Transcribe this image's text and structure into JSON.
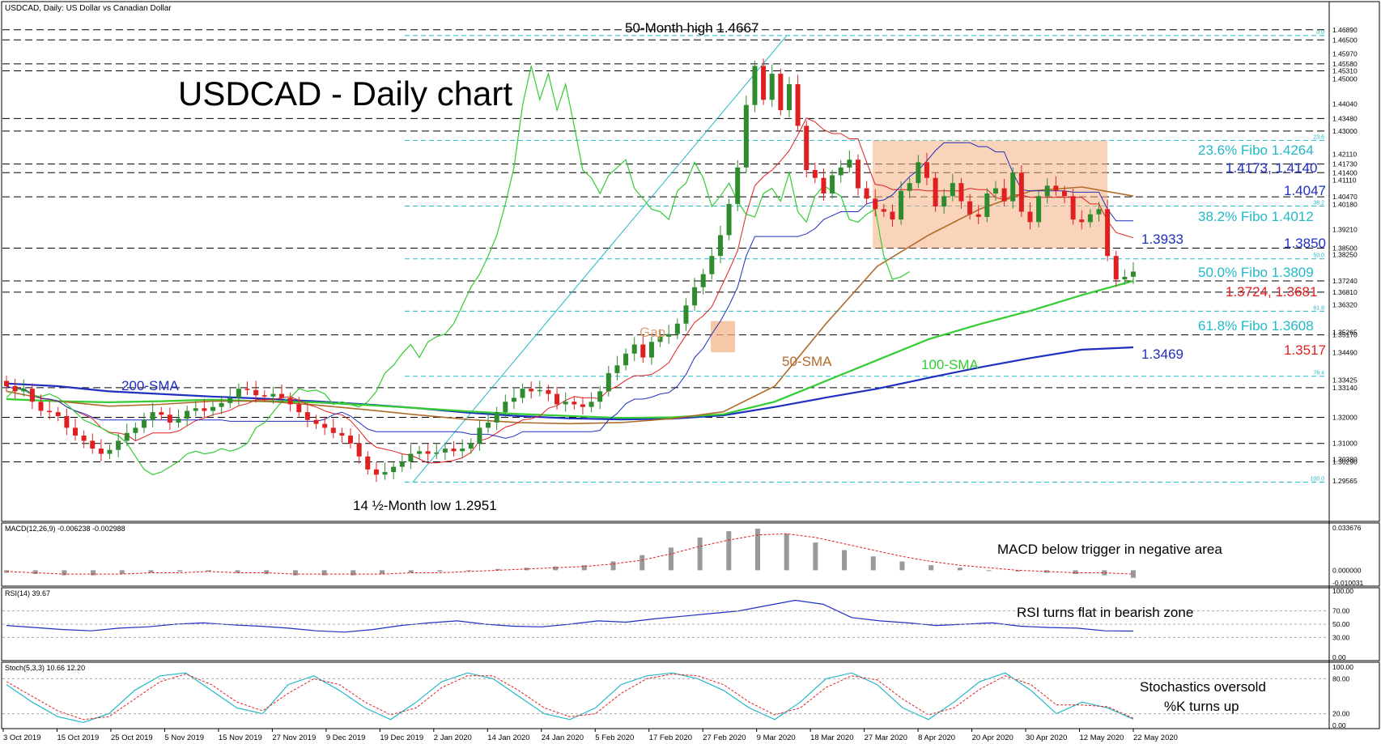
{
  "header": {
    "symbol_line": "USDCAD, Daily:  US Dollar vs Canadian Dollar"
  },
  "chart_title": "USDCAD - Daily chart",
  "colors": {
    "up": "#2e8b2e",
    "down": "#e02020",
    "sma200": "#1f2fbf",
    "sma100": "#33cc33",
    "sma50": "#b06a2a",
    "tenkan": "#e02020",
    "kijun": "#1f2fbf",
    "chikou": "#33cc33",
    "cloud": "#f4b183",
    "fibo": "#22b8c8",
    "rsi": "#1f2fbf",
    "stoch_k": "#22b8c8",
    "stoch_d": "#e02020"
  },
  "chart_data": [
    {
      "type": "candlestick",
      "title": "USDCAD - Daily chart",
      "x_tick_labels": [
        "3 Oct 2019",
        "15 Oct 2019",
        "25 Oct 2019",
        "5 Nov 2019",
        "15 Nov 2019",
        "27 Nov 2019",
        "9 Dec 2019",
        "19 Dec 2019",
        "2 Jan 2020",
        "14 Jan 2020",
        "24 Jan 2020",
        "5 Feb 2020",
        "17 Feb 2020",
        "27 Feb 2020",
        "9 Mar 2020",
        "18 Mar 2020",
        "27 Mar 2020",
        "8 Apr 2020",
        "20 Apr 2020",
        "30 Apr 2020",
        "12 May 2020",
        "22 May 2020"
      ],
      "ylim": [
        1.29,
        1.471
      ],
      "y_tick_labels": [
        "1.46890",
        "1.46500",
        "1.45970",
        "1.45580",
        "1.45310",
        "1.45000",
        "1.44040",
        "1.43480",
        "1.43000",
        "1.42110",
        "1.41730",
        "1.41400",
        "1.41110",
        "1.40470",
        "1.40180",
        "1.39210",
        "1.38500",
        "1.38250",
        "1.37240",
        "1.36810",
        "1.36320",
        "1.35265",
        "1.35170",
        "1.34490",
        "1.33425",
        "1.33140",
        "1.32000",
        "1.31000",
        "1.30380",
        "1.30290",
        "1.29565"
      ],
      "y_tick_values": [
        1.4689,
        1.465,
        1.4597,
        1.4558,
        1.4531,
        1.45,
        1.4404,
        1.4348,
        1.43,
        1.4211,
        1.4173,
        1.414,
        1.4111,
        1.4047,
        1.4018,
        1.3921,
        1.385,
        1.3825,
        1.3724,
        1.3681,
        1.3632,
        1.35265,
        1.3517,
        1.3449,
        1.33425,
        1.3314,
        1.32,
        1.31,
        1.3038,
        1.3029,
        1.29565
      ],
      "horizontal_levels": [
        1.4689,
        1.465,
        1.4558,
        1.4531,
        1.4348,
        1.43,
        1.4173,
        1.414,
        1.4047,
        1.385,
        1.3724,
        1.3681,
        1.3517,
        1.3314,
        1.32,
        1.31,
        1.3029
      ],
      "fibo_levels": [
        {
          "pct": "0.0",
          "value": 1.4667
        },
        {
          "pct": "23.6",
          "value": 1.4264
        },
        {
          "pct": "38.2",
          "value": 1.4012
        },
        {
          "pct": "50.0",
          "value": 1.3809
        },
        {
          "pct": "61.8",
          "value": 1.3608
        },
        {
          "pct": "76.4",
          "value": 1.3358
        },
        {
          "pct": "100.0",
          "value": 1.2951
        }
      ],
      "series": [
        {
          "name": "200-SMA",
          "values": [
            1.333,
            1.332,
            1.33,
            1.329,
            1.328,
            1.3272,
            1.3262,
            1.325,
            1.3236,
            1.3218,
            1.3205,
            1.3196,
            1.3192,
            1.3195,
            1.3208,
            1.324,
            1.3276,
            1.331,
            1.3352,
            1.3392,
            1.3428,
            1.346,
            1.3469
          ]
        },
        {
          "name": "100-SMA",
          "values": [
            1.327,
            1.3262,
            1.3258,
            1.3262,
            1.3268,
            1.3262,
            1.3258,
            1.3248,
            1.3236,
            1.3223,
            1.3213,
            1.3205,
            1.3198,
            1.32,
            1.3212,
            1.326,
            1.334,
            1.342,
            1.35,
            1.3558,
            1.361,
            1.367,
            1.3724
          ]
        },
        {
          "name": "50-SMA",
          "values": [
            1.33,
            1.3262,
            1.3243,
            1.325,
            1.3262,
            1.3263,
            1.3248,
            1.323,
            1.321,
            1.3192,
            1.318,
            1.3176,
            1.318,
            1.3195,
            1.3222,
            1.332,
            1.356,
            1.378,
            1.39,
            1.4,
            1.407,
            1.4085,
            1.405
          ]
        }
      ],
      "ohlc_close": [
        1.332,
        1.33,
        1.331,
        1.326,
        1.3225,
        1.322,
        1.3205,
        1.316,
        1.313,
        1.311,
        1.308,
        1.306,
        1.3075,
        1.311,
        1.314,
        1.316,
        1.319,
        1.322,
        1.321,
        1.318,
        1.3195,
        1.3225,
        1.3235,
        1.3225,
        1.324,
        1.3255,
        1.3275,
        1.331,
        1.3305,
        1.3285,
        1.328,
        1.329,
        1.3275,
        1.325,
        1.322,
        1.319,
        1.3175,
        1.316,
        1.314,
        1.313,
        1.31,
        1.305,
        1.3,
        1.298,
        1.299,
        1.301,
        1.303,
        1.306,
        1.307,
        1.306,
        1.3065,
        1.308,
        1.307,
        1.308,
        1.31,
        1.316,
        1.318,
        1.322,
        1.326,
        1.3275,
        1.331,
        1.33,
        1.3305,
        1.329,
        1.325,
        1.326,
        1.325,
        1.324,
        1.326,
        1.33,
        1.337,
        1.34,
        1.3445,
        1.348,
        1.343,
        1.349,
        1.351,
        1.352,
        1.356,
        1.363,
        1.37,
        1.375,
        1.382,
        1.39,
        1.402,
        1.416,
        1.44,
        1.455,
        1.442,
        1.452,
        1.438,
        1.448,
        1.432,
        1.415,
        1.412,
        1.406,
        1.413,
        1.416,
        1.419,
        1.408,
        1.404,
        1.4,
        1.399,
        1.396,
        1.407,
        1.41,
        1.418,
        1.412,
        1.401,
        1.405,
        1.41,
        1.403,
        1.398,
        1.397,
        1.406,
        1.408,
        1.403,
        1.414,
        1.399,
        1.395,
        1.405,
        1.409,
        1.407,
        1.405,
        1.396,
        1.395,
        1.398,
        1.4,
        1.382,
        1.373,
        1.374,
        1.376
      ]
    },
    {
      "type": "bar",
      "title": "MACD(12,26,9) -0.006238 -0.002988",
      "y_tick_labels": [
        "0.033676",
        "0.000000",
        "-0.010031"
      ],
      "ylim": [
        -0.010031,
        0.033676
      ],
      "series": [
        {
          "name": "MACD",
          "values": [
            -0.002,
            -0.003,
            -0.004,
            -0.004,
            -0.003,
            -0.002,
            -0.001,
            -0.001,
            -0.002,
            -0.003,
            -0.004,
            -0.004,
            -0.004,
            -0.003,
            -0.002,
            -0.001,
            0.0,
            0.001,
            0.002,
            0.003,
            0.004,
            0.007,
            0.012,
            0.018,
            0.026,
            0.031,
            0.033,
            0.029,
            0.022,
            0.016,
            0.011,
            0.007,
            0.004,
            0.002,
            0.0,
            -0.001,
            -0.002,
            -0.003,
            -0.004,
            -0.006
          ]
        },
        {
          "name": "Signal",
          "values": [
            -0.001,
            -0.002,
            -0.003,
            -0.003,
            -0.003,
            -0.002,
            -0.002,
            -0.001,
            -0.002,
            -0.002,
            -0.003,
            -0.003,
            -0.003,
            -0.003,
            -0.002,
            -0.002,
            -0.001,
            0.0,
            0.001,
            0.002,
            0.003,
            0.005,
            0.008,
            0.013,
            0.019,
            0.024,
            0.028,
            0.029,
            0.026,
            0.021,
            0.016,
            0.011,
            0.007,
            0.004,
            0.002,
            0.0,
            -0.001,
            -0.002,
            -0.002,
            -0.003
          ]
        }
      ]
    },
    {
      "type": "line",
      "title": "RSI(14) 39.67",
      "y_tick_labels": [
        "100.00",
        "70.00",
        "50.00",
        "30.00",
        "0.00"
      ],
      "ylim": [
        0,
        100
      ],
      "series": [
        {
          "name": "RSI",
          "values": [
            48,
            45,
            42,
            40,
            44,
            46,
            50,
            52,
            49,
            47,
            44,
            40,
            38,
            42,
            48,
            52,
            55,
            50,
            47,
            46,
            50,
            55,
            53,
            58,
            62,
            66,
            70,
            78,
            86,
            80,
            60,
            55,
            52,
            48,
            50,
            52,
            47,
            45,
            44,
            40,
            39.67
          ]
        }
      ]
    },
    {
      "type": "line",
      "title": "Stoch(5,3,3) 10.66 12.20",
      "y_tick_labels": [
        "100.00",
        "80.00",
        "20.00",
        "0.00"
      ],
      "ylim": [
        0,
        100
      ],
      "series": [
        {
          "name": "%K",
          "values": [
            70,
            40,
            15,
            5,
            20,
            60,
            85,
            90,
            60,
            30,
            20,
            70,
            85,
            60,
            30,
            10,
            40,
            75,
            90,
            80,
            50,
            20,
            10,
            30,
            70,
            85,
            90,
            80,
            60,
            30,
            10,
            40,
            80,
            90,
            70,
            30,
            10,
            40,
            75,
            90,
            60,
            20,
            40,
            30,
            10.66
          ]
        },
        {
          "name": "%D",
          "values": [
            75,
            50,
            25,
            10,
            15,
            45,
            75,
            88,
            70,
            40,
            25,
            55,
            80,
            70,
            40,
            18,
            30,
            65,
            85,
            85,
            60,
            30,
            15,
            20,
            55,
            80,
            88,
            85,
            70,
            40,
            18,
            30,
            65,
            85,
            78,
            45,
            18,
            30,
            62,
            85,
            70,
            35,
            35,
            32,
            12.2
          ]
        }
      ]
    }
  ],
  "annotations": {
    "high": "50-Month high 1.4667",
    "low": "14 ½-Month low 1.2951",
    "gap": "Gap",
    "sma200": "200-SMA",
    "sma50": "50-SMA",
    "sma100": "100-SMA",
    "fibo236": "23.6% Fibo 1.4264",
    "fibo382": "38.2% Fibo 1.4012",
    "fibo500": "50.0% Fibo 1.3809",
    "fibo618": "61.8% Fibo 1.3608",
    "lvl_1_4173": "1.4173, 1.4140",
    "lvl_1_4047": "1.4047",
    "lvl_1_3933": "1.3933",
    "lvl_1_3850": "1.3850",
    "lvl_1_3724": "1.3724, 1.3681",
    "lvl_1_3469": "1.3469",
    "lvl_1_3517": "1.3517",
    "macd_note": "MACD below trigger in negative area",
    "rsi_note": "RSI turns flat in bearish zone",
    "stoch_note1": "Stochastics oversold",
    "stoch_note2": "%K turns up"
  }
}
